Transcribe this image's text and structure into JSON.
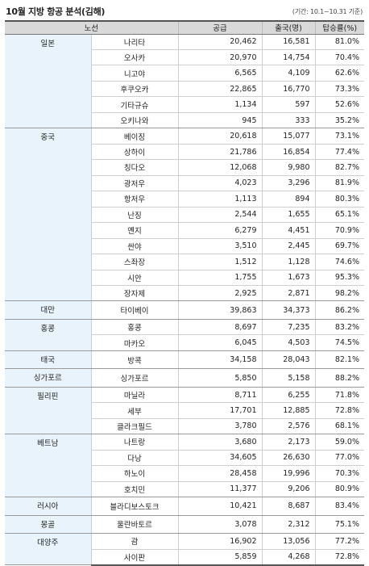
{
  "title": "10월 지방 항공 분석(김해)",
  "period": "(기간: 10.1~10.31 기준)",
  "headers": [
    "노선",
    "공급",
    "출국(명)",
    "탑승률(%)"
  ],
  "regions": [
    {
      "name": "일본",
      "routes": [
        {
          "city": "나리타",
          "supply": "20,462",
          "departures": "16,581",
          "load": "81.0%"
        },
        {
          "city": "오사카",
          "supply": "20,970",
          "departures": "14,754",
          "load": "70.4%"
        },
        {
          "city": "니고야",
          "supply": "6,565",
          "departures": "4,109",
          "load": "62.6%"
        },
        {
          "city": "후쿠오카",
          "supply": "22,865",
          "departures": "16,770",
          "load": "73.3%"
        },
        {
          "city": "기타규슈",
          "supply": "1,134",
          "departures": "597",
          "load": "52.6%"
        },
        {
          "city": "오키나와",
          "supply": "945",
          "departures": "333",
          "load": "35.2%"
        }
      ]
    },
    {
      "name": "중국",
      "routes": [
        {
          "city": "베이징",
          "supply": "20,618",
          "departures": "15,077",
          "load": "73.1%"
        },
        {
          "city": "상하이",
          "supply": "21,786",
          "departures": "16,854",
          "load": "77.4%"
        },
        {
          "city": "칭다오",
          "supply": "12,068",
          "departures": "9,980",
          "load": "82.7%"
        },
        {
          "city": "광저우",
          "supply": "4,023",
          "departures": "3,296",
          "load": "81.9%"
        },
        {
          "city": "항저우",
          "supply": "1,113",
          "departures": "894",
          "load": "80.3%"
        },
        {
          "city": "난징",
          "supply": "2,544",
          "departures": "1,655",
          "load": "65.1%"
        },
        {
          "city": "옌지",
          "supply": "6,279",
          "departures": "4,451",
          "load": "70.9%"
        },
        {
          "city": "싼야",
          "supply": "3,510",
          "departures": "2,445",
          "load": "69.7%"
        },
        {
          "city": "스좌장",
          "supply": "1,512",
          "departures": "1,128",
          "load": "74.6%"
        },
        {
          "city": "시안",
          "supply": "1,755",
          "departures": "1,673",
          "load": "95.3%"
        },
        {
          "city": "장자제",
          "supply": "2,925",
          "departures": "2,871",
          "load": "98.2%"
        }
      ]
    },
    {
      "name": "대만",
      "routes": [
        {
          "city": "타이베이",
          "supply": "39,863",
          "departures": "34,373",
          "load": "86.2%"
        }
      ]
    },
    {
      "name": "홍콩",
      "routes": [
        {
          "city": "홍콩",
          "supply": "8,697",
          "departures": "7,235",
          "load": "83.2%"
        },
        {
          "city": "마카오",
          "supply": "6,045",
          "departures": "4,503",
          "load": "74.5%"
        }
      ]
    },
    {
      "name": "태국",
      "routes": [
        {
          "city": "방콕",
          "supply": "34,158",
          "departures": "28,043",
          "load": "82.1%"
        }
      ]
    },
    {
      "name": "싱가포르",
      "routes": [
        {
          "city": "싱가포르",
          "supply": "5,850",
          "departures": "5,158",
          "load": "88.2%"
        }
      ]
    },
    {
      "name": "필리핀",
      "routes": [
        {
          "city": "마닐라",
          "supply": "8,711",
          "departures": "6,255",
          "load": "71.8%"
        },
        {
          "city": "세부",
          "supply": "17,701",
          "departures": "12,885",
          "load": "72.8%"
        },
        {
          "city": "클라크필드",
          "supply": "3,780",
          "departures": "2,576",
          "load": "68.1%"
        }
      ]
    },
    {
      "name": "베트남",
      "routes": [
        {
          "city": "나트랑",
          "supply": "3,680",
          "departures": "2,173",
          "load": "59.0%"
        },
        {
          "city": "다낭",
          "supply": "34,605",
          "departures": "26,630",
          "load": "77.0%"
        },
        {
          "city": "하노이",
          "supply": "28,458",
          "departures": "19,996",
          "load": "70.3%"
        },
        {
          "city": "호치민",
          "supply": "11,377",
          "departures": "9,206",
          "load": "80.9%"
        }
      ]
    },
    {
      "name": "러시아",
      "routes": [
        {
          "city": "블라디보스토크",
          "supply": "10,421",
          "departures": "8,687",
          "load": "83.4%"
        }
      ]
    },
    {
      "name": "몽골",
      "routes": [
        {
          "city": "울란바토르",
          "supply": "3,078",
          "departures": "2,312",
          "load": "75.1%"
        }
      ]
    },
    {
      "name": "대양주",
      "routes": [
        {
          "city": "괌",
          "supply": "16,902",
          "departures": "13,056",
          "load": "77.2%"
        },
        {
          "city": "사이판",
          "supply": "5,859",
          "departures": "4,268",
          "load": "72.8%"
        }
      ]
    }
  ]
}
